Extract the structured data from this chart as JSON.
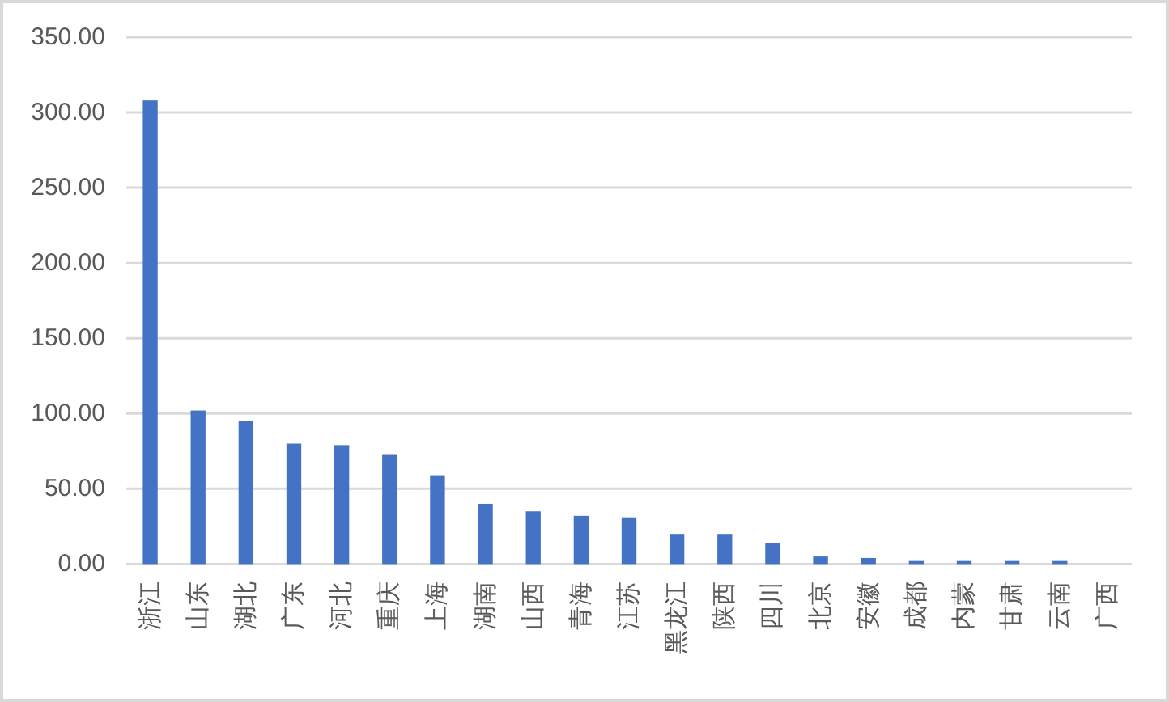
{
  "chart_data": {
    "type": "bar",
    "categories": [
      "浙江",
      "山东",
      "湖北",
      "广东",
      "河北",
      "重庆",
      "上海",
      "湖南",
      "山西",
      "青海",
      "江苏",
      "黑龙江",
      "陕西",
      "四川",
      "北京",
      "安徽",
      "成都",
      "内蒙",
      "甘肃",
      "云南",
      "广西"
    ],
    "values": [
      308,
      102,
      95,
      80,
      79,
      73,
      59,
      40,
      35,
      32,
      31,
      20,
      20,
      14,
      5,
      4,
      2,
      2,
      2,
      2,
      0
    ],
    "color": "#4472c4",
    "ylim": [
      0,
      350
    ],
    "yticks": [
      {
        "value": 0,
        "label": "0.00"
      },
      {
        "value": 50,
        "label": "50.00"
      },
      {
        "value": 100,
        "label": "100.00"
      },
      {
        "value": 150,
        "label": "150.00"
      },
      {
        "value": 200,
        "label": "200.00"
      },
      {
        "value": 250,
        "label": "250.00"
      },
      {
        "value": 300,
        "label": "300.00"
      },
      {
        "value": 350,
        "label": "350.00"
      }
    ],
    "grid": "y"
  }
}
